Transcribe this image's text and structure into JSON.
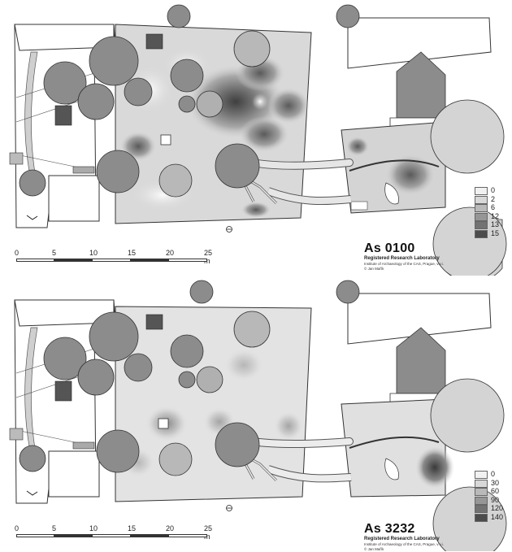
{
  "panels": [
    {
      "code": "As 0100",
      "legend": [
        {
          "label": "0",
          "color": "#f1f1f1"
        },
        {
          "label": "2",
          "color": "#d8d8d8"
        },
        {
          "label": "6",
          "color": "#b9b9b9"
        },
        {
          "label": "12",
          "color": "#969696"
        },
        {
          "label": "13",
          "color": "#727272"
        },
        {
          "label": "15",
          "color": "#4c4c4c"
        }
      ]
    },
    {
      "code": "As 3232",
      "legend": [
        {
          "label": "0",
          "color": "#f1f1f1"
        },
        {
          "label": "30",
          "color": "#d8d8d8"
        },
        {
          "label": "60",
          "color": "#b9b9b9"
        },
        {
          "label": "90",
          "color": "#969696"
        },
        {
          "label": "120",
          "color": "#727272"
        },
        {
          "label": "140",
          "color": "#4c4c4c"
        }
      ]
    }
  ],
  "scalebar": {
    "ticks": [
      "0",
      "5",
      "10",
      "15",
      "20",
      "25 m"
    ]
  },
  "caption": {
    "lab": "Registered Research Laboratory",
    "institute": "Institute of Archaeology of the CAS, Prague, v.v.i.",
    "author": "© Jan Mařík"
  },
  "colors": {
    "feature_fill": "#8c8c8c",
    "outline": "#333333",
    "paper": "#ffffff"
  }
}
